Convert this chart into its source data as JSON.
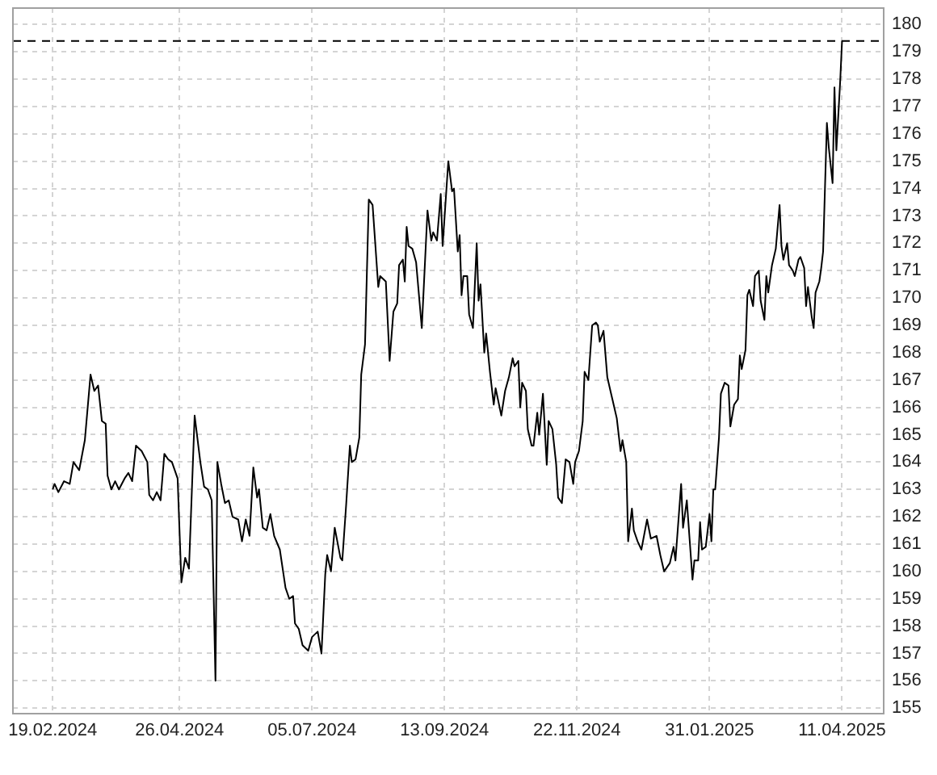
{
  "chart_data": {
    "type": "line",
    "color": "#000000",
    "marker": "none",
    "line_style": "solid",
    "legend": false,
    "grid": true,
    "x": [
      "2024-02-19",
      "2024-02-20",
      "2024-02-22",
      "2024-02-25",
      "2024-02-28",
      "2024-03-01",
      "2024-03-04",
      "2024-03-07",
      "2024-03-09",
      "2024-03-10",
      "2024-03-12",
      "2024-03-14",
      "2024-03-16",
      "2024-03-18",
      "2024-03-19",
      "2024-03-21",
      "2024-03-23",
      "2024-03-25",
      "2024-03-28",
      "2024-03-30",
      "2024-04-01",
      "2024-04-03",
      "2024-04-06",
      "2024-04-09",
      "2024-04-10",
      "2024-04-12",
      "2024-04-14",
      "2024-04-16",
      "2024-04-18",
      "2024-04-20",
      "2024-04-22",
      "2024-04-25",
      "2024-04-27",
      "2024-04-29",
      "2024-05-01",
      "2024-05-04",
      "2024-05-07",
      "2024-05-09",
      "2024-05-11",
      "2024-05-13",
      "2024-05-15",
      "2024-05-16",
      "2024-05-18",
      "2024-05-20",
      "2024-05-22",
      "2024-05-24",
      "2024-05-27",
      "2024-05-29",
      "2024-05-31",
      "2024-06-02",
      "2024-06-04",
      "2024-06-06",
      "2024-06-07",
      "2024-06-09",
      "2024-06-11",
      "2024-06-13",
      "2024-06-15",
      "2024-06-18",
      "2024-06-21",
      "2024-06-23",
      "2024-06-25",
      "2024-06-26",
      "2024-06-28",
      "2024-06-30",
      "2024-07-03",
      "2024-07-05",
      "2024-07-08",
      "2024-07-10",
      "2024-07-12",
      "2024-07-13",
      "2024-07-15",
      "2024-07-17",
      "2024-07-20",
      "2024-07-21",
      "2024-07-23",
      "2024-07-25",
      "2024-07-26",
      "2024-07-28",
      "2024-07-30",
      "2024-07-31",
      "2024-08-02",
      "2024-08-04",
      "2024-08-06",
      "2024-08-09",
      "2024-08-10",
      "2024-08-13",
      "2024-08-15",
      "2024-08-17",
      "2024-08-19",
      "2024-08-20",
      "2024-08-22",
      "2024-08-23",
      "2024-08-24",
      "2024-08-25",
      "2024-08-27",
      "2024-08-29",
      "2024-08-31",
      "2024-09-01",
      "2024-09-04",
      "2024-09-06",
      "2024-09-07",
      "2024-09-09",
      "2024-09-11",
      "2024-09-12",
      "2024-09-15",
      "2024-09-17",
      "2024-09-18",
      "2024-09-20",
      "2024-09-21",
      "2024-09-22",
      "2024-09-23",
      "2024-09-25",
      "2024-09-26",
      "2024-09-28",
      "2024-09-30",
      "2024-10-01",
      "2024-10-02",
      "2024-10-04",
      "2024-10-05",
      "2024-10-07",
      "2024-10-09",
      "2024-10-10",
      "2024-10-13",
      "2024-10-15",
      "2024-10-17",
      "2024-10-19",
      "2024-10-20",
      "2024-10-22",
      "2024-10-23",
      "2024-10-24",
      "2024-10-26",
      "2024-10-27",
      "2024-10-29",
      "2024-10-30",
      "2024-11-01",
      "2024-11-02",
      "2024-11-04",
      "2024-11-06",
      "2024-11-07",
      "2024-11-09",
      "2024-11-11",
      "2024-11-12",
      "2024-11-14",
      "2024-11-16",
      "2024-11-18",
      "2024-11-20",
      "2024-11-21",
      "2024-11-23",
      "2024-11-25",
      "2024-11-26",
      "2024-11-28",
      "2024-11-30",
      "2024-12-02",
      "2024-12-03",
      "2024-12-04",
      "2024-12-06",
      "2024-12-08",
      "2024-12-10",
      "2024-12-11",
      "2024-12-13",
      "2024-12-15",
      "2024-12-16",
      "2024-12-18",
      "2024-12-19",
      "2024-12-21",
      "2024-12-22",
      "2024-12-24",
      "2024-12-26",
      "2024-12-29",
      "2024-12-31",
      "2025-01-03",
      "2025-01-05",
      "2025-01-07",
      "2025-01-10",
      "2025-01-12",
      "2025-01-13",
      "2025-01-16",
      "2025-01-17",
      "2025-01-19",
      "2025-01-22",
      "2025-01-23",
      "2025-01-25",
      "2025-01-26",
      "2025-01-27",
      "2025-01-29",
      "2025-01-31",
      "2025-02-01",
      "2025-02-02",
      "2025-02-03",
      "2025-02-05",
      "2025-02-06",
      "2025-02-08",
      "2025-02-10",
      "2025-02-11",
      "2025-02-13",
      "2025-02-15",
      "2025-02-16",
      "2025-02-17",
      "2025-02-19",
      "2025-02-20",
      "2025-02-21",
      "2025-02-23",
      "2025-02-24",
      "2025-02-26",
      "2025-02-27",
      "2025-03-01",
      "2025-03-02",
      "2025-03-03",
      "2025-03-05",
      "2025-03-07",
      "2025-03-09",
      "2025-03-10",
      "2025-03-11",
      "2025-03-13",
      "2025-03-14",
      "2025-03-16",
      "2025-03-17",
      "2025-03-19",
      "2025-03-20",
      "2025-03-22",
      "2025-03-23",
      "2025-03-24",
      "2025-03-26",
      "2025-03-27",
      "2025-03-28",
      "2025-03-30",
      "2025-03-31",
      "2025-04-01",
      "2025-04-03",
      "2025-04-04",
      "2025-04-06",
      "2025-04-07",
      "2025-04-08",
      "2025-04-10",
      "2025-04-11"
    ],
    "values": [
      163.0,
      163.2,
      162.9,
      163.3,
      163.2,
      164.0,
      163.7,
      164.8,
      166.4,
      167.2,
      166.6,
      166.8,
      165.5,
      165.4,
      163.5,
      163.0,
      163.3,
      163.0,
      163.4,
      163.6,
      163.3,
      164.6,
      164.4,
      164.0,
      162.8,
      162.6,
      162.9,
      162.6,
      164.3,
      164.1,
      164.0,
      163.4,
      159.6,
      160.5,
      160.1,
      165.7,
      164.0,
      163.1,
      163.0,
      162.6,
      156.0,
      164.0,
      163.2,
      162.5,
      162.6,
      162.0,
      161.9,
      161.1,
      161.9,
      161.3,
      163.8,
      162.7,
      163.0,
      161.6,
      161.5,
      162.1,
      161.3,
      160.8,
      159.4,
      159.0,
      159.1,
      158.1,
      157.9,
      157.3,
      157.1,
      157.6,
      157.8,
      157.0,
      159.9,
      160.6,
      160.0,
      161.6,
      160.5,
      160.4,
      162.4,
      164.6,
      164.0,
      164.1,
      164.9,
      167.2,
      168.3,
      173.6,
      173.4,
      170.4,
      170.8,
      170.6,
      167.7,
      169.5,
      169.8,
      171.2,
      171.4,
      170.6,
      172.6,
      171.9,
      171.8,
      171.3,
      169.7,
      168.9,
      173.2,
      172.1,
      172.4,
      172.1,
      173.8,
      171.9,
      175.0,
      173.9,
      174.0,
      171.7,
      172.3,
      170.1,
      170.8,
      170.8,
      169.4,
      168.9,
      172.0,
      169.9,
      170.5,
      168.0,
      168.7,
      167.3,
      166.1,
      166.7,
      165.7,
      166.6,
      167.1,
      167.8,
      167.5,
      167.7,
      166.0,
      166.9,
      166.6,
      165.2,
      164.6,
      164.6,
      165.8,
      165.0,
      166.5,
      163.9,
      165.5,
      165.2,
      163.9,
      162.7,
      162.5,
      164.1,
      164.0,
      163.2,
      164.0,
      164.4,
      165.5,
      167.3,
      167.0,
      169.0,
      169.1,
      169.0,
      168.4,
      168.8,
      167.1,
      166.5,
      166.2,
      165.6,
      164.4,
      164.8,
      164.0,
      161.1,
      162.3,
      161.5,
      161.1,
      160.8,
      161.9,
      161.2,
      161.3,
      160.6,
      160.0,
      160.3,
      160.9,
      160.4,
      163.2,
      161.6,
      162.6,
      159.7,
      160.4,
      160.4,
      161.8,
      160.8,
      160.9,
      162.1,
      161.1,
      163.0,
      163.0,
      164.9,
      166.5,
      166.9,
      166.8,
      165.3,
      166.1,
      166.3,
      167.9,
      167.4,
      168.1,
      170.1,
      170.3,
      169.7,
      170.8,
      171.0,
      169.9,
      169.2,
      170.8,
      170.2,
      171.2,
      171.8,
      173.4,
      171.9,
      171.4,
      172.0,
      171.2,
      171.0,
      170.8,
      171.4,
      171.5,
      171.1,
      169.7,
      170.4,
      169.3,
      168.9,
      170.2,
      170.6,
      171.1,
      171.7,
      176.4,
      175.5,
      174.2,
      177.7,
      175.4,
      177.9,
      179.4
    ],
    "xlim": [
      "2024-01-29",
      "2025-05-03"
    ],
    "xticks": [
      {
        "value": "2024-02-19",
        "label": "19.02.2024"
      },
      {
        "value": "2024-04-26",
        "label": "26.04.2024"
      },
      {
        "value": "2024-07-05",
        "label": "05.07.2024"
      },
      {
        "value": "2024-09-13",
        "label": "13.09.2024"
      },
      {
        "value": "2024-11-22",
        "label": "22.11.2024"
      },
      {
        "value": "2025-01-31",
        "label": "31.01.2025"
      },
      {
        "value": "2025-04-11",
        "label": "11.04.2025"
      }
    ],
    "ylim": [
      154.8,
      180.6
    ],
    "yticks": [
      155,
      156,
      157,
      158,
      159,
      160,
      161,
      162,
      163,
      164,
      165,
      166,
      167,
      168,
      169,
      170,
      171,
      172,
      173,
      174,
      175,
      176,
      177,
      178,
      179,
      180
    ],
    "ref_lines": [
      {
        "axis": "y",
        "value": 179.4,
        "color": "#000000",
        "line_style": "dashed"
      }
    ]
  }
}
